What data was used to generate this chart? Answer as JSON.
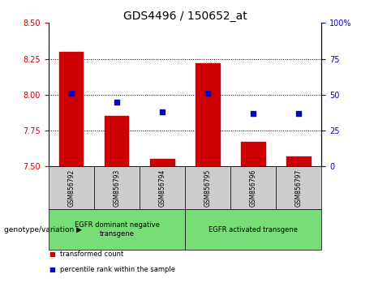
{
  "title": "GDS4496 / 150652_at",
  "categories": [
    "GSM856792",
    "GSM856793",
    "GSM856794",
    "GSM856795",
    "GSM856796",
    "GSM856797"
  ],
  "bar_values": [
    8.3,
    7.85,
    7.55,
    8.22,
    7.67,
    7.57
  ],
  "bar_baseline": 7.5,
  "blue_values": [
    51,
    45,
    38,
    51,
    37,
    37
  ],
  "ylim_left": [
    7.5,
    8.5
  ],
  "ylim_right": [
    0,
    100
  ],
  "yticks_left": [
    7.5,
    7.75,
    8.0,
    8.25,
    8.5
  ],
  "yticks_right": [
    0,
    25,
    50,
    75,
    100
  ],
  "bar_color": "#cc0000",
  "blue_color": "#0000cc",
  "group1_label": "EGFR dominant negative\ntransgene",
  "group2_label": "EGFR activated transgene",
  "group1_indices": [
    0,
    1,
    2
  ],
  "group2_indices": [
    3,
    4,
    5
  ],
  "legend_bar_label": "transformed count",
  "legend_blue_label": "percentile rank within the sample",
  "genotype_label": "genotype/variation",
  "group_bg_color": "#77dd77",
  "sample_bg_color": "#cccccc",
  "title_fontsize": 10,
  "tick_fontsize": 7,
  "label_fontsize": 7
}
